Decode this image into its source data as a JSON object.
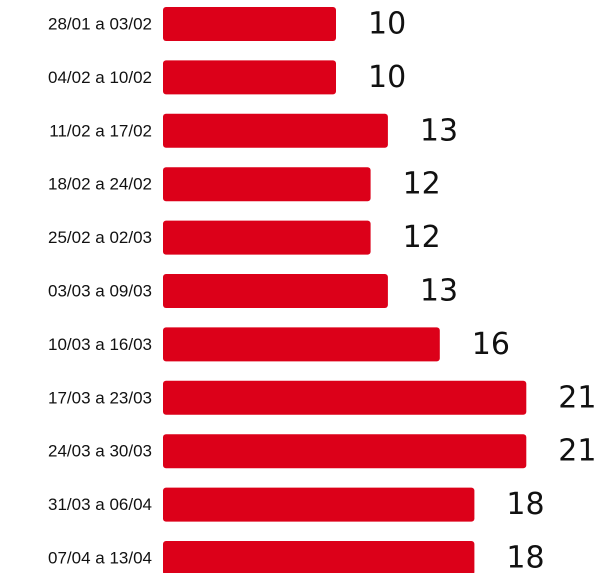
{
  "chart_data": {
    "type": "bar",
    "orientation": "horizontal",
    "color": "#dc0019",
    "categories": [
      "28/01 a 03/02",
      "04/02 a 10/02",
      "11/02 a 17/02",
      "18/02 a 24/02",
      "25/02 a 02/03",
      "03/03 a 09/03",
      "10/03 a 16/03",
      "17/03 a 23/03",
      "24/03 a 30/03",
      "31/03 a 06/04",
      "07/04 a 13/04"
    ],
    "values": [
      10,
      10,
      13,
      12,
      12,
      13,
      16,
      21,
      21,
      18,
      18
    ]
  }
}
